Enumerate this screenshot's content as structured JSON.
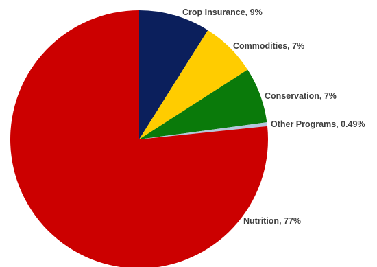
{
  "chart_data": {
    "type": "pie",
    "title": "",
    "legend": "none",
    "slices": [
      {
        "label": "Crop Insurance",
        "value": 9,
        "display": "Crop Insurance, 9%",
        "color": "#0b1f5c"
      },
      {
        "label": "Commodities",
        "value": 7,
        "display": "Commodities, 7%",
        "color": "#ffcc00"
      },
      {
        "label": "Conservation",
        "value": 7,
        "display": "Conservation, 7%",
        "color": "#0a7a0a"
      },
      {
        "label": "Other Programs",
        "value": 0.49,
        "display": "Other Programs, 0.49%",
        "color": "#b4c7dc"
      },
      {
        "label": "Nutrition",
        "value": 77,
        "display": "Nutrition, 77%",
        "color": "#cc0000"
      }
    ]
  }
}
